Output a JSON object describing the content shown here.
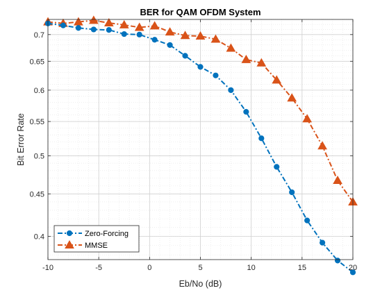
{
  "chart_data": {
    "type": "line",
    "title": "BER for QAM OFDM System",
    "xlabel": "Eb/No (dB)",
    "ylabel": "Bit Error Rate",
    "xlim": [
      -10,
      20
    ],
    "ylim": [
      0.375,
      0.73
    ],
    "y_scale": "log",
    "grid": "major and minor",
    "legend_position": "bottom-left",
    "x_ticks": [
      -10,
      -5,
      0,
      5,
      10,
      15,
      20
    ],
    "y_ticks": [
      0.4,
      0.45,
      0.5,
      0.55,
      0.6,
      0.65,
      0.7
    ],
    "x_tick_labels": [
      "-10",
      "-5",
      "0",
      "5",
      "10",
      "15",
      "20"
    ],
    "y_tick_labels": [
      "0.4",
      "0.45",
      "0.5",
      "0.55",
      "0.6",
      "0.65",
      "0.7"
    ],
    "x": [
      -10,
      -8.5,
      -7,
      -5.5,
      -4,
      -2.5,
      -1,
      0.5,
      2,
      3.5,
      5,
      6.5,
      8,
      9.5,
      11,
      12.5,
      14,
      15.5,
      17,
      18.5,
      20
    ],
    "series": [
      {
        "name": "Zero-Forcing",
        "color": "#0072BD",
        "marker": "circle",
        "line_style": "dash-dot",
        "values": [
          0.722,
          0.718,
          0.713,
          0.71,
          0.709,
          0.701,
          0.7,
          0.69,
          0.68,
          0.66,
          0.64,
          0.625,
          0.6,
          0.565,
          0.525,
          0.485,
          0.452,
          0.418,
          0.393,
          0.374,
          0.362
        ]
      },
      {
        "name": "MMSE",
        "color": "#D95319",
        "marker": "triangle",
        "line_style": "dash-dot",
        "values": [
          0.725,
          0.722,
          0.725,
          0.728,
          0.723,
          0.719,
          0.714,
          0.717,
          0.705,
          0.698,
          0.697,
          0.691,
          0.674,
          0.653,
          0.647,
          0.617,
          0.587,
          0.554,
          0.514,
          0.467,
          0.44
        ]
      }
    ]
  }
}
